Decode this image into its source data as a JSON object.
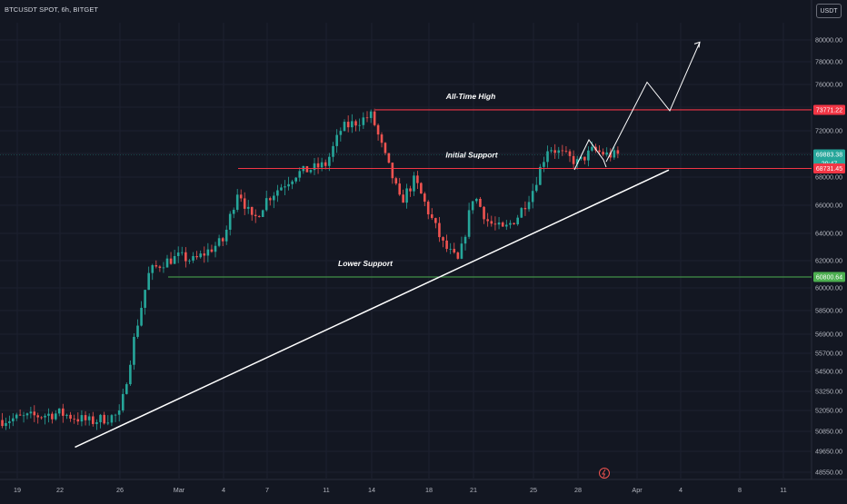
{
  "header": {
    "symbol_title": "BTCUSDT SPOT, 6h, BITGET",
    "currency_button": "USDT"
  },
  "colors": {
    "background": "#131722",
    "up_candle": "#26a69a",
    "down_candle": "#ef5350",
    "resistance_line": "#f23645",
    "support_line": "#4caf50",
    "trendline": "#ffffff",
    "axis_text": "#b2b5be"
  },
  "chart_data": {
    "type": "candlestick",
    "x_ticks": [
      "19",
      "22",
      "26",
      "Mar",
      "4",
      "7",
      "11",
      "14",
      "18",
      "21",
      "25",
      "28",
      "Apr",
      "4",
      "8",
      "11"
    ],
    "y_ticks": [
      80000,
      78000,
      76000,
      74000,
      72000,
      70000,
      68000,
      66000,
      64000,
      62000,
      60000,
      58500,
      56900,
      55700,
      54500,
      53250,
      52050,
      50850,
      49650,
      48550
    ],
    "y_tick_labels": [
      "80000.00",
      "78000.00",
      "76000.00",
      "74000.00",
      "72000.00",
      "70000.00",
      "68000.00",
      "66000.00",
      "64000.00",
      "62000.00",
      "60000.00",
      "58500.00",
      "56900.00",
      "55700.00",
      "54500.00",
      "53250.00",
      "52050.00",
      "50850.00",
      "49650.00",
      "48550.00"
    ],
    "price_labels": [
      {
        "label": "73771.22",
        "kind": "resistance"
      },
      {
        "label": "69883.38",
        "sub": "20:47",
        "kind": "last"
      },
      {
        "label": "68731.45",
        "kind": "resistance"
      },
      {
        "label": "60800.64",
        "kind": "support"
      }
    ],
    "levels": [
      {
        "name": "All-Time High",
        "value": 73771.22,
        "color": "#f23645"
      },
      {
        "name": "Initial Support",
        "value": 68731.45,
        "color": "#f23645"
      },
      {
        "name": "Lower Support",
        "value": 60800.64,
        "color": "#4caf50"
      }
    ],
    "last_price": 69883.38,
    "key_closes": [
      {
        "x": "18",
        "value": 51500
      },
      {
        "x": "22",
        "value": 51900
      },
      {
        "x": "24",
        "value": 51400
      },
      {
        "x": "26",
        "value": 51800
      },
      {
        "x": "27",
        "value": 56800
      },
      {
        "x": "28",
        "value": 61200
      },
      {
        "x": "29",
        "value": 61900
      },
      {
        "x": "Mar",
        "value": 62300
      },
      {
        "x": "2",
        "value": 62000
      },
      {
        "x": "4",
        "value": 63500
      },
      {
        "x": "5",
        "value": 67200
      },
      {
        "x": "6",
        "value": 64800
      },
      {
        "x": "7",
        "value": 66500
      },
      {
        "x": "9",
        "value": 68300
      },
      {
        "x": "11",
        "value": 69100
      },
      {
        "x": "12",
        "value": 72200
      },
      {
        "x": "14",
        "value": 73300
      },
      {
        "x": "15",
        "value": 69500
      },
      {
        "x": "16",
        "value": 66200
      },
      {
        "x": "17",
        "value": 67800
      },
      {
        "x": "19",
        "value": 63100
      },
      {
        "x": "20",
        "value": 61900
      },
      {
        "x": "21",
        "value": 66800
      },
      {
        "x": "22",
        "value": 64800
      },
      {
        "x": "23",
        "value": 64200
      },
      {
        "x": "24",
        "value": 65300
      },
      {
        "x": "25",
        "value": 67200
      },
      {
        "x": "26",
        "value": 70600
      },
      {
        "x": "27",
        "value": 69900
      },
      {
        "x": "28",
        "value": 69200
      },
      {
        "x": "29",
        "value": 70300
      },
      {
        "x": "30",
        "value": 69883.38
      }
    ],
    "projection": [
      {
        "x": "30",
        "value": 69300
      },
      {
        "x": "Apr",
        "value": 76200
      },
      {
        "x": "4",
        "value": 73700
      },
      {
        "x": "5",
        "value": 79800
      }
    ],
    "trendline": [
      {
        "x": "23",
        "value": 49900
      },
      {
        "x": "Apr",
        "value": 68600
      }
    ]
  }
}
